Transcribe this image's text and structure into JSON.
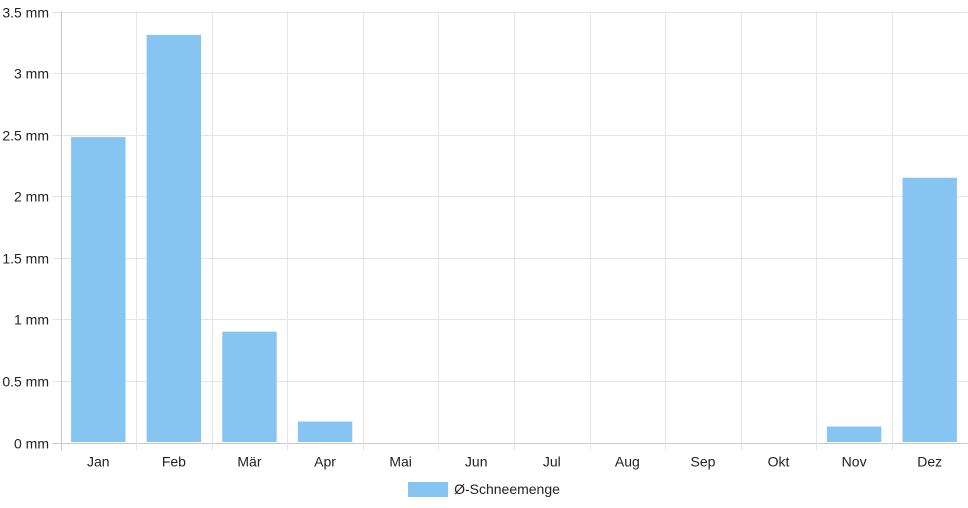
{
  "chart_data": {
    "type": "bar",
    "categories": [
      "Jan",
      "Feb",
      "Mär",
      "Apr",
      "Mai",
      "Jun",
      "Jul",
      "Aug",
      "Sep",
      "Okt",
      "Nov",
      "Dez"
    ],
    "series": [
      {
        "name": "Ø-Schneemenge",
        "values": [
          2.48,
          3.31,
          0.9,
          0.17,
          0,
          0,
          0,
          0,
          0,
          0,
          0.13,
          2.15
        ]
      }
    ],
    "y_ticks": [
      "0 mm",
      "0.5 mm",
      "1 mm",
      "1.5 mm",
      "2 mm",
      "2.5 mm",
      "3 mm",
      "3.5 mm"
    ],
    "ylim": [
      0,
      3.5
    ],
    "y_step": 0.5,
    "grid": true,
    "legend_position": "bottom",
    "colors": {
      "bar": "#86c5f1",
      "grid": "#e5e5e5",
      "axis": "#c8c8c8"
    }
  }
}
